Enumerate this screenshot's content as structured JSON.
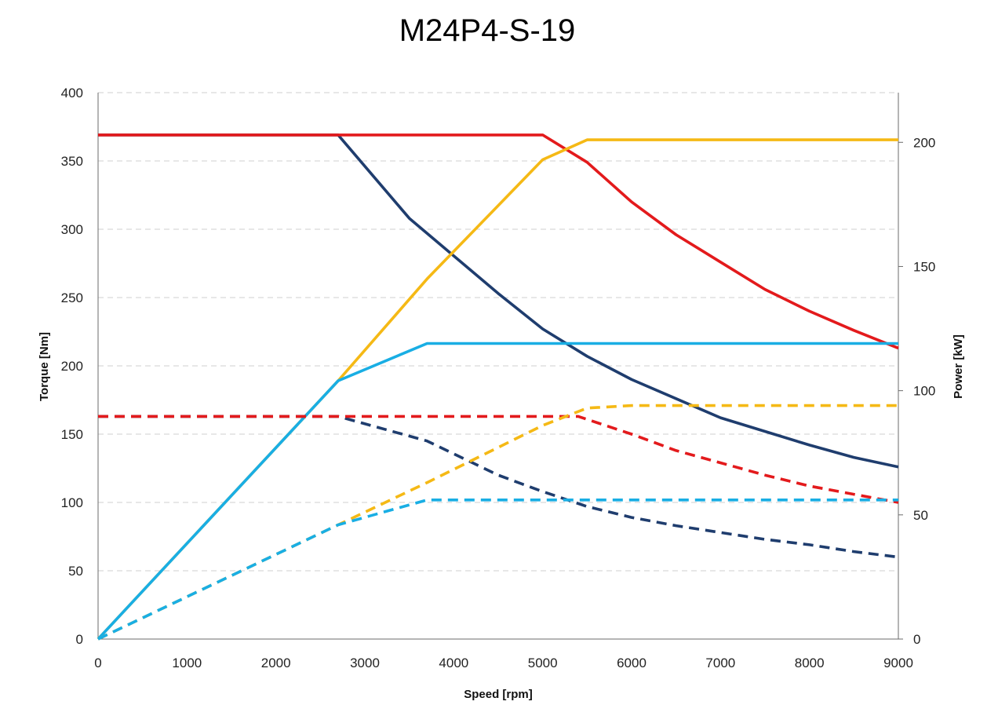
{
  "chart_data": {
    "type": "line",
    "title": "M24P4-S-19",
    "xlabel": "Speed [rpm]",
    "ylabel": "Torque [Nm]",
    "y2label": "Power [kW]",
    "xlim": [
      0,
      9000
    ],
    "ylim": [
      0,
      400
    ],
    "y2lim": [
      0,
      220
    ],
    "xticks": [
      0,
      1000,
      2000,
      3000,
      4000,
      5000,
      6000,
      7000,
      8000,
      9000
    ],
    "yticks": [
      0,
      50,
      100,
      150,
      200,
      250,
      300,
      350,
      400
    ],
    "y2ticks": [
      0,
      50,
      100,
      150,
      200
    ],
    "grid": true,
    "legend": "none",
    "series": [
      {
        "axis": "left",
        "color": "#1f3d6e",
        "dash": false,
        "points": [
          [
            0,
            369
          ],
          [
            2700,
            369
          ],
          [
            3500,
            308
          ],
          [
            4500,
            253
          ],
          [
            5000,
            227
          ],
          [
            5500,
            207
          ],
          [
            6000,
            190
          ],
          [
            6500,
            176
          ],
          [
            7000,
            162
          ],
          [
            7500,
            152
          ],
          [
            8000,
            142
          ],
          [
            8500,
            133
          ],
          [
            9000,
            126
          ]
        ]
      },
      {
        "axis": "left",
        "color": "#e31a1c",
        "dash": false,
        "points": [
          [
            0,
            369
          ],
          [
            5000,
            369
          ],
          [
            5500,
            349
          ],
          [
            6000,
            320
          ],
          [
            6500,
            296
          ],
          [
            7000,
            276
          ],
          [
            7500,
            256
          ],
          [
            8000,
            240
          ],
          [
            8500,
            226
          ],
          [
            9000,
            213
          ]
        ]
      },
      {
        "axis": "right",
        "color": "#f5b915",
        "dash": false,
        "points": [
          [
            0,
            0
          ],
          [
            2700,
            104
          ],
          [
            3700,
            145
          ],
          [
            5000,
            193
          ],
          [
            5500,
            201
          ],
          [
            9000,
            201
          ]
        ]
      },
      {
        "axis": "right",
        "color": "#19aee4",
        "dash": false,
        "points": [
          [
            0,
            0
          ],
          [
            2700,
            104
          ],
          [
            3700,
            119
          ],
          [
            9000,
            119
          ]
        ]
      },
      {
        "axis": "left",
        "color": "#1f3d6e",
        "dash": true,
        "points": [
          [
            0,
            163
          ],
          [
            2700,
            163
          ],
          [
            3700,
            145
          ],
          [
            4500,
            120
          ],
          [
            5000,
            108
          ],
          [
            5500,
            97
          ],
          [
            6000,
            89
          ],
          [
            6500,
            83
          ],
          [
            7000,
            78
          ],
          [
            7500,
            73
          ],
          [
            8000,
            69
          ],
          [
            8500,
            64
          ],
          [
            9000,
            60
          ]
        ]
      },
      {
        "axis": "left",
        "color": "#e31a1c",
        "dash": true,
        "points": [
          [
            0,
            163
          ],
          [
            5400,
            163
          ],
          [
            6000,
            150
          ],
          [
            6500,
            138
          ],
          [
            7000,
            129
          ],
          [
            7500,
            120
          ],
          [
            8000,
            112
          ],
          [
            8500,
            106
          ],
          [
            9000,
            100
          ]
        ]
      },
      {
        "axis": "right",
        "color": "#f5b915",
        "dash": true,
        "points": [
          [
            0,
            0
          ],
          [
            2700,
            46
          ],
          [
            3700,
            63
          ],
          [
            5000,
            86
          ],
          [
            5500,
            93
          ],
          [
            6000,
            94
          ],
          [
            9000,
            94
          ]
        ]
      },
      {
        "axis": "right",
        "color": "#19aee4",
        "dash": true,
        "points": [
          [
            0,
            0
          ],
          [
            2700,
            46
          ],
          [
            3700,
            56
          ],
          [
            9000,
            56
          ]
        ]
      }
    ]
  }
}
